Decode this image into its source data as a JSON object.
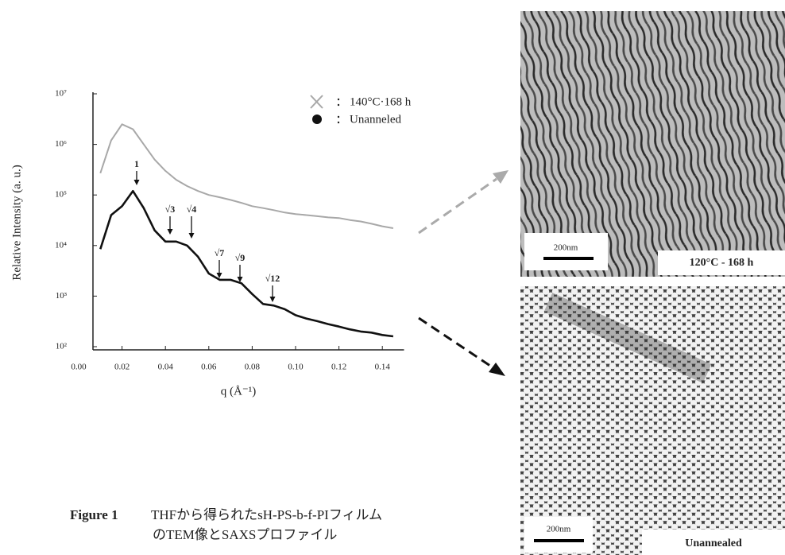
{
  "chart_data": {
    "type": "line",
    "y_label": "Relative Intensity  (a. u.)",
    "x_label": "q (Å⁻¹)",
    "log_y": true,
    "xlim": [
      0,
      0.15
    ],
    "xticks": [
      {
        "value": 0,
        "label": "0.00"
      },
      {
        "value": 0.02,
        "label": "0.02"
      },
      {
        "value": 0.04,
        "label": "0.04"
      },
      {
        "value": 0.06,
        "label": "0.06"
      },
      {
        "value": 0.08,
        "label": "0.08"
      },
      {
        "value": 0.1,
        "label": "0.10"
      },
      {
        "value": 0.12,
        "label": "0.12"
      },
      {
        "value": 0.14,
        "label": "0.14"
      }
    ],
    "ylim": [
      100,
      10000000
    ],
    "yticks": [
      {
        "value": 100,
        "label": "10²"
      },
      {
        "value": 1000,
        "label": "10³"
      },
      {
        "value": 10000,
        "label": "10⁴"
      },
      {
        "value": 100000,
        "label": "10⁵"
      },
      {
        "value": 1000000,
        "label": "10⁶"
      },
      {
        "value": 10000000,
        "label": "10⁷"
      }
    ],
    "x": [
      0.01,
      0.015,
      0.02,
      0.025,
      0.03,
      0.035,
      0.04,
      0.045,
      0.05,
      0.055,
      0.06,
      0.065,
      0.07,
      0.075,
      0.08,
      0.085,
      0.09,
      0.095,
      0.1,
      0.105,
      0.11,
      0.115,
      0.12,
      0.125,
      0.13,
      0.135,
      0.14,
      0.145
    ],
    "series": [
      {
        "name": "140°C·168 h",
        "color": "#a8a8a8",
        "values": [
          270000,
          1200000,
          2500000,
          2000000,
          1000000,
          500000,
          300000,
          200000,
          150000,
          120000,
          100000,
          90000,
          80000,
          70000,
          60000,
          55000,
          50000,
          45000,
          42000,
          40000,
          38000,
          36000,
          35000,
          32000,
          30000,
          27000,
          24000,
          22000
        ]
      },
      {
        "name": "Unanneled",
        "color": "#111111",
        "values": [
          8500,
          40000,
          60000,
          120000,
          55000,
          20000,
          12000,
          12000,
          10000,
          6000,
          2800,
          2100,
          2100,
          1800,
          1100,
          700,
          650,
          550,
          420,
          360,
          320,
          280,
          250,
          220,
          200,
          190,
          170,
          160
        ]
      }
    ],
    "annotations": [
      "1",
      "√3",
      "√4",
      "√7",
      "√9",
      "√12"
    ]
  },
  "caption": {
    "figure": "Figure 1",
    "lines": [
      "THFから得られたsH-PS-b-f-PIフィルム",
      "のTEM像とSAXSプロファイル"
    ]
  },
  "images": [
    {
      "scale_bar": "200nm",
      "label": "120°C - 168 h"
    },
    {
      "scale_bar": "200nm",
      "label": "Unannealed"
    }
  ]
}
